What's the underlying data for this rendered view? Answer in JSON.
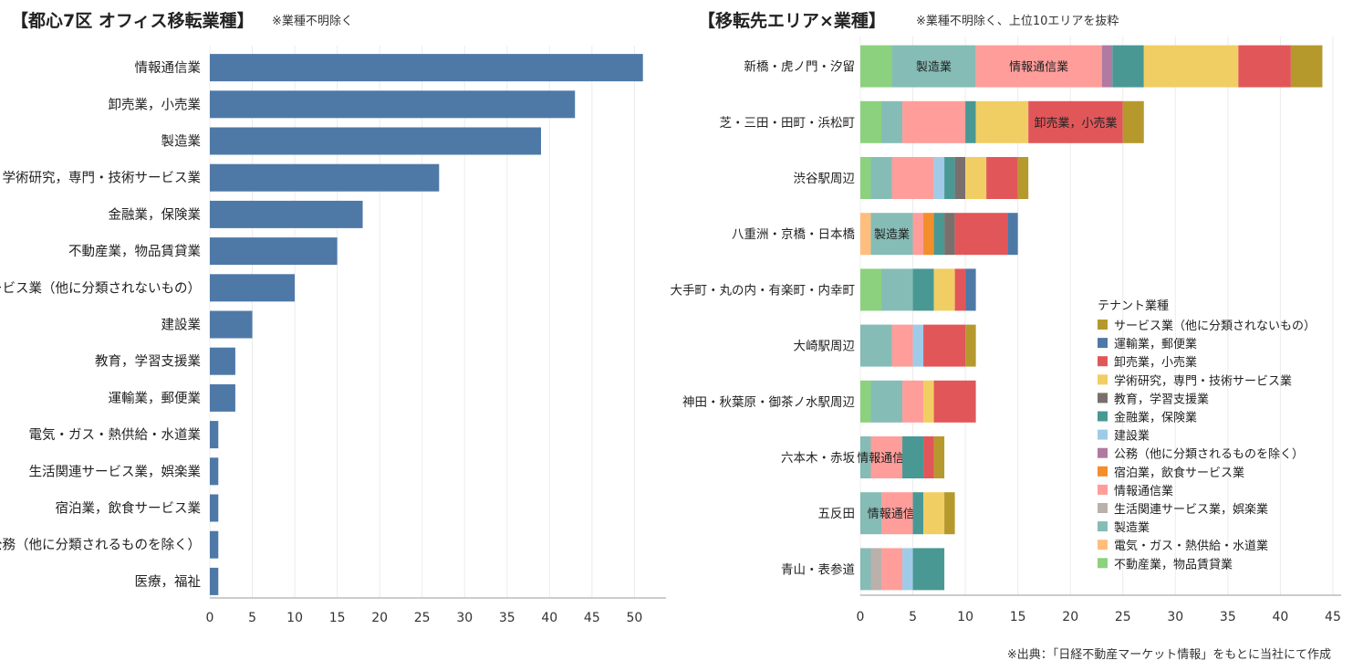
{
  "left": {
    "title": "【都心7区 オフィス移転業種】",
    "note": "※業種不明除く"
  },
  "right": {
    "title": "【移転先エリア×業種】",
    "note": "※業種不明除く、上位10エリアを抜粋"
  },
  "source": "※出典：「日経不動産マーケット情報」をもとに当社にて作成",
  "legend_title": "テナント業種",
  "chart_data": [
    {
      "type": "bar",
      "orientation": "horizontal",
      "title": "【都心7区 オフィス移転業種】",
      "color": "#4e79a7",
      "categories": [
        "情報通信業",
        "卸売業，小売業",
        "製造業",
        "学術研究，専門・技術サービス業",
        "金融業，保険業",
        "不動産業，物品賃貸業",
        "サービス業（他に分類されないもの）",
        "建設業",
        "教育，学習支援業",
        "運輸業，郵便業",
        "電気・ガス・熱供給・水道業",
        "生活関連サービス業，娯楽業",
        "宿泊業，飲食サービス業",
        "公務（他に分類されるものを除く）",
        "医療，福祉"
      ],
      "values": [
        51,
        43,
        39,
        27,
        18,
        15,
        10,
        5,
        3,
        3,
        1,
        1,
        1,
        1,
        1
      ],
      "xlim": [
        0,
        52
      ],
      "ticks": [
        0,
        5,
        10,
        15,
        20,
        25,
        30,
        35,
        40,
        45,
        50
      ],
      "grid": true
    },
    {
      "type": "bar",
      "orientation": "horizontal",
      "stacked": true,
      "title": "【移転先エリア×業種】",
      "categories": [
        "新橋・虎ノ門・汐留",
        "芝・三田・田町・浜松町",
        "渋谷駅周辺",
        "八重洲・京橋・日本橋",
        "大手町・丸の内・有楽町・内幸町",
        "大崎駅周辺",
        "神田・秋葉原・御茶ノ水駅周辺",
        "六本木・赤坂",
        "五反田",
        "青山・表参道"
      ],
      "xlim": [
        0,
        46
      ],
      "ticks": [
        0,
        5,
        10,
        15,
        20,
        25,
        30,
        35,
        40,
        45
      ],
      "legend_position": "right",
      "series": [
        {
          "name": "不動産業，物品賃貸業",
          "color": "#8cd17d",
          "values": [
            3,
            2,
            1,
            0,
            2,
            0,
            1,
            0,
            0,
            0
          ]
        },
        {
          "name": "電気・ガス・熱供給・水道業",
          "color": "#ffbe7d",
          "values": [
            0,
            0,
            0,
            1,
            0,
            0,
            0,
            0,
            0,
            0
          ]
        },
        {
          "name": "製造業",
          "color": "#86bcb6",
          "values": [
            8,
            2,
            2,
            4,
            3,
            3,
            3,
            1,
            2,
            1
          ]
        },
        {
          "name": "生活関連サービス業，娯楽業",
          "color": "#bab0ac",
          "values": [
            0,
            0,
            0,
            0,
            0,
            0,
            0,
            0,
            0,
            1
          ]
        },
        {
          "name": "情報通信業",
          "color": "#ff9d9a",
          "values": [
            12,
            6,
            4,
            1,
            0,
            2,
            2,
            3,
            3,
            2
          ]
        },
        {
          "name": "宿泊業，飲食サービス業",
          "color": "#f28e2b",
          "values": [
            0,
            0,
            0,
            1,
            0,
            0,
            0,
            0,
            0,
            0
          ]
        },
        {
          "name": "公務（他に分類されるものを除く）",
          "color": "#b07aa1",
          "values": [
            1,
            0,
            0,
            0,
            0,
            0,
            0,
            0,
            0,
            0
          ]
        },
        {
          "name": "建設業",
          "color": "#a0cbe8",
          "values": [
            0,
            0,
            1,
            0,
            0,
            1,
            0,
            0,
            0,
            1
          ]
        },
        {
          "name": "金融業，保険業",
          "color": "#499894",
          "values": [
            3,
            1,
            1,
            1,
            2,
            0,
            0,
            2,
            1,
            3
          ]
        },
        {
          "name": "教育，学習支援業",
          "color": "#79706e",
          "values": [
            0,
            0,
            1,
            1,
            0,
            0,
            0,
            0,
            0,
            0
          ]
        },
        {
          "name": "学術研究，専門・技術サービス業",
          "color": "#f1ce63",
          "values": [
            9,
            5,
            2,
            0,
            2,
            0,
            1,
            0,
            2,
            0
          ]
        },
        {
          "name": "卸売業，小売業",
          "color": "#e15759",
          "values": [
            5,
            9,
            3,
            5,
            1,
            4,
            4,
            1,
            0,
            0
          ]
        },
        {
          "name": "運輸業，郵便業",
          "color": "#4e79a7",
          "values": [
            0,
            0,
            0,
            1,
            1,
            0,
            0,
            0,
            0,
            0
          ]
        },
        {
          "name": "サービス業（他に分類されないもの）",
          "color": "#b6992d",
          "values": [
            3,
            2,
            1,
            0,
            0,
            1,
            0,
            1,
            1,
            0
          ]
        }
      ],
      "segment_labels": [
        {
          "row": "新橋・虎ノ門・汐留",
          "series": "製造業",
          "text": "製造業"
        },
        {
          "row": "新橋・虎ノ門・汐留",
          "series": "情報通信業",
          "text": "情報通信業"
        },
        {
          "row": "芝・三田・田町・浜松町",
          "series": "卸売業，小売業",
          "text": "卸売業，小売業"
        },
        {
          "row": "八重洲・京橋・日本橋",
          "series": "製造業",
          "text": "製造業"
        },
        {
          "row": "六本木・赤坂",
          "series": "情報通信業",
          "text": "情報通信業"
        },
        {
          "row": "五反田",
          "series": "情報通信業",
          "text": "情報通信業"
        }
      ]
    }
  ]
}
